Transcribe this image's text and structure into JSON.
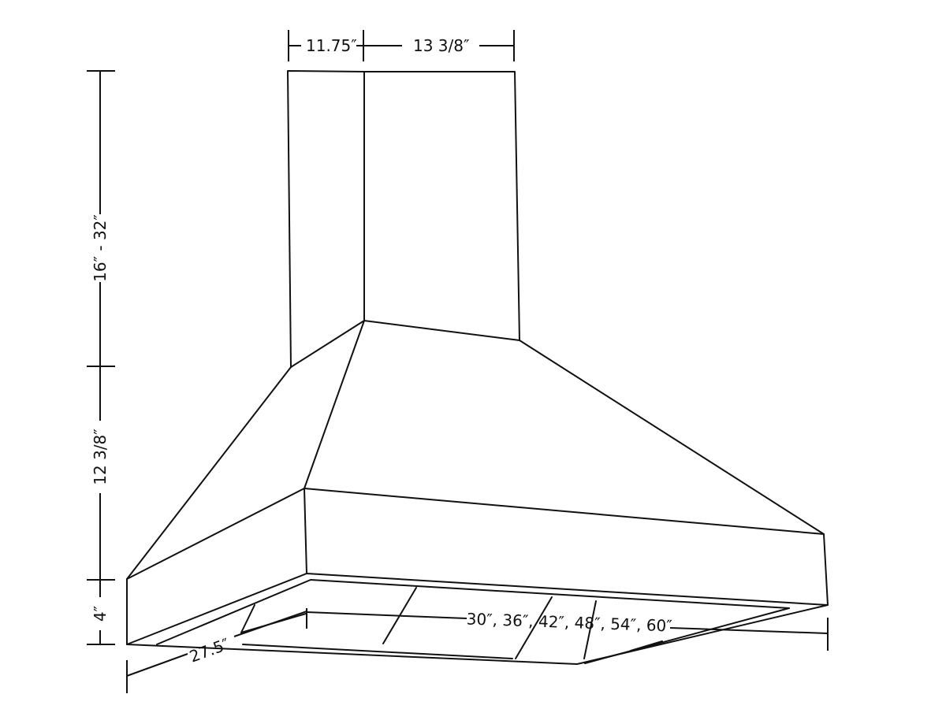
{
  "dimensions": {
    "flue_width": "11.75″",
    "flue_depth": "13 3/8″",
    "flue_height": "16″ - 32″",
    "canopy_height": "12 3/8″",
    "skirt_height": "4″",
    "hood_depth": "27.5″",
    "hood_widths": "30″, 36″, 42″, 48″, 54″, 60″"
  }
}
